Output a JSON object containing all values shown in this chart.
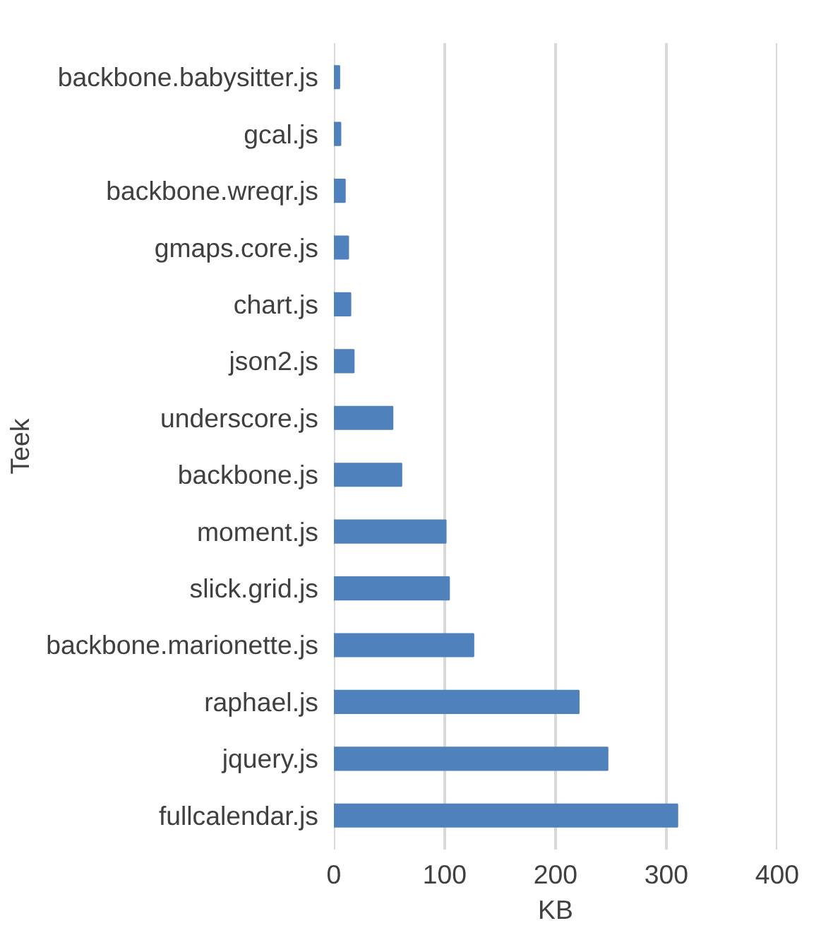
{
  "chart_data": {
    "type": "bar",
    "orientation": "horizontal",
    "xlabel": "KB",
    "ylabel": "Teek",
    "categories": [
      "backbone.babysitter.js",
      "gcal.js",
      "backbone.wreqr.js",
      "gmaps.core.js",
      "chart.js",
      "json2.js",
      "underscore.js",
      "backbone.js",
      "moment.js",
      "slick.grid.js",
      "backbone.marionette.js",
      "raphael.js",
      "jquery.js",
      "fullcalendar.js"
    ],
    "values": [
      5,
      6,
      10,
      13,
      15,
      18,
      53,
      61,
      101,
      104,
      126,
      221,
      247,
      310
    ],
    "color": "#4f81bd",
    "xlim": [
      0,
      400
    ],
    "xticks": [
      0,
      100,
      200,
      300,
      400
    ],
    "grid": "x"
  }
}
